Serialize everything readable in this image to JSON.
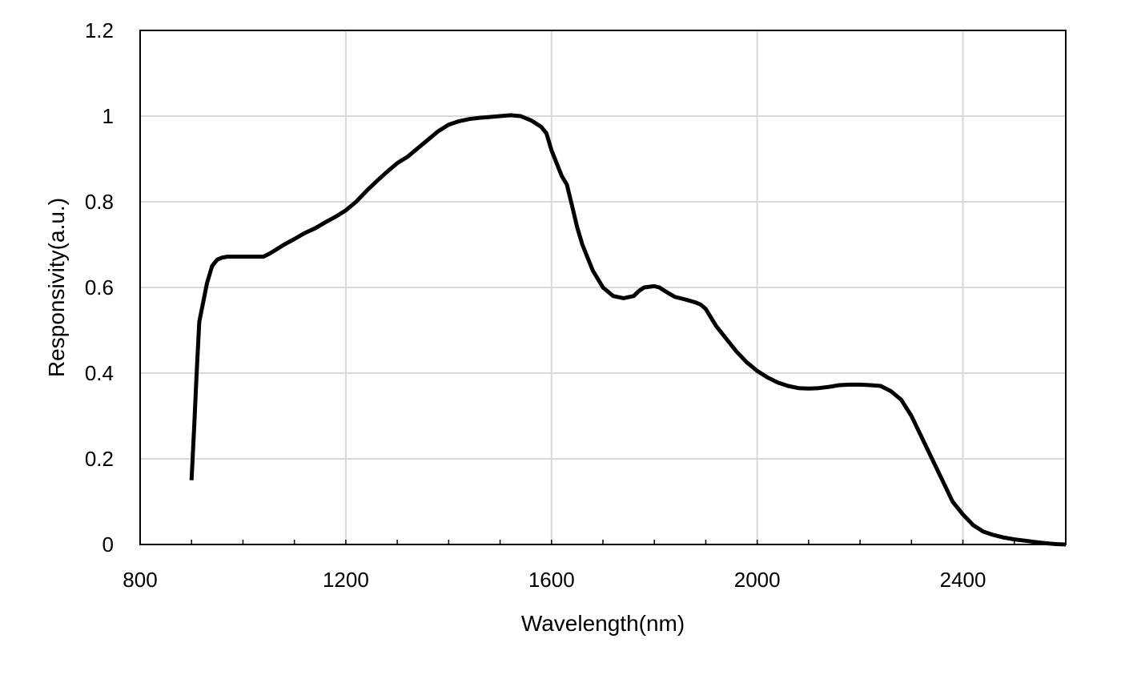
{
  "chart_data": {
    "type": "line",
    "title": "",
    "xlabel": "Wavelength(nm)",
    "ylabel": "Responsivity(a.u.)",
    "xlim": [
      800,
      2600
    ],
    "ylim": [
      0,
      1.2
    ],
    "xticks": [
      800,
      1200,
      1600,
      2000,
      2400
    ],
    "xtick_labels": [
      "800",
      "1200",
      "1600",
      "2000",
      "2400"
    ],
    "yticks": [
      0,
      0.2,
      0.4,
      0.6,
      0.8,
      1,
      1.2
    ],
    "ytick_labels": [
      "0",
      "0.2",
      "0.4",
      "0.6",
      "0.8",
      "1",
      "1.2"
    ],
    "grid": true,
    "legend": "none",
    "colors": {
      "line": "#000000",
      "grid": "#d9d9d9",
      "axes": "#000000"
    },
    "series": [
      {
        "x": [
          900,
          905,
          910,
          915,
          920,
          930,
          940,
          950,
          960,
          970,
          980,
          990,
          1000,
          1020,
          1040,
          1050,
          1060,
          1080,
          1100,
          1120,
          1140,
          1160,
          1180,
          1200,
          1220,
          1240,
          1260,
          1280,
          1300,
          1320,
          1340,
          1360,
          1380,
          1400,
          1420,
          1440,
          1460,
          1480,
          1500,
          1520,
          1540,
          1560,
          1580,
          1590,
          1600,
          1610,
          1620,
          1630,
          1640,
          1650,
          1660,
          1680,
          1700,
          1720,
          1740,
          1760,
          1770,
          1780,
          1800,
          1810,
          1820,
          1840,
          1860,
          1880,
          1890,
          1900,
          1920,
          1940,
          1960,
          1980,
          2000,
          2020,
          2040,
          2060,
          2080,
          2100,
          2120,
          2140,
          2160,
          2180,
          2200,
          2220,
          2240,
          2260,
          2280,
          2300,
          2320,
          2340,
          2360,
          2380,
          2400,
          2420,
          2440,
          2460,
          2480,
          2500,
          2520,
          2540,
          2560,
          2580,
          2600
        ],
        "y": [
          0.15,
          0.27,
          0.4,
          0.52,
          0.55,
          0.61,
          0.65,
          0.665,
          0.67,
          0.672,
          0.672,
          0.672,
          0.672,
          0.672,
          0.672,
          0.678,
          0.685,
          0.7,
          0.713,
          0.727,
          0.738,
          0.752,
          0.765,
          0.78,
          0.8,
          0.825,
          0.848,
          0.87,
          0.89,
          0.905,
          0.925,
          0.945,
          0.965,
          0.98,
          0.988,
          0.993,
          0.996,
          0.998,
          1.0,
          1.002,
          1.0,
          0.99,
          0.975,
          0.96,
          0.92,
          0.89,
          0.86,
          0.84,
          0.79,
          0.74,
          0.7,
          0.64,
          0.6,
          0.58,
          0.575,
          0.58,
          0.592,
          0.6,
          0.603,
          0.6,
          0.592,
          0.578,
          0.572,
          0.565,
          0.56,
          0.55,
          0.51,
          0.48,
          0.45,
          0.425,
          0.405,
          0.39,
          0.378,
          0.37,
          0.365,
          0.364,
          0.365,
          0.368,
          0.372,
          0.373,
          0.373,
          0.372,
          0.37,
          0.358,
          0.338,
          0.3,
          0.25,
          0.2,
          0.15,
          0.1,
          0.07,
          0.045,
          0.03,
          0.022,
          0.016,
          0.012,
          0.009,
          0.006,
          0.003,
          0.001,
          0.0
        ]
      }
    ]
  }
}
